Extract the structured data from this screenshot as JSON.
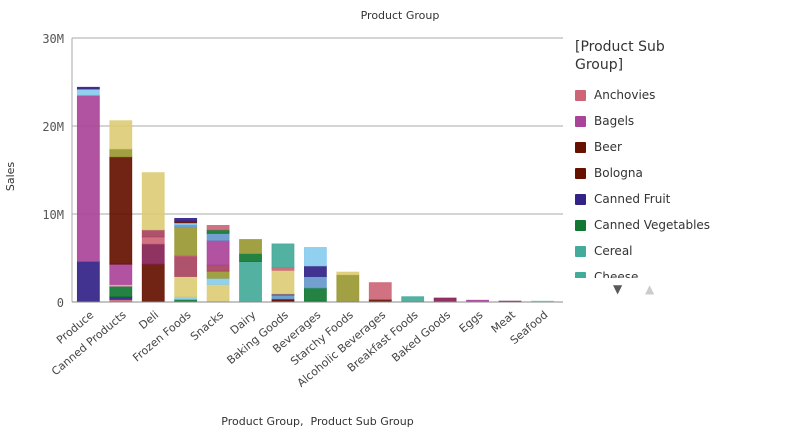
{
  "chart_data": {
    "type": "bar",
    "stacked": true,
    "title": "Product Group",
    "xlabel": "Product Group,  Product Sub Group",
    "ylabel": "Sales",
    "ylim": [
      0,
      30000000
    ],
    "yticks": [
      {
        "v": 0,
        "label": "0"
      },
      {
        "v": 10000000,
        "label": "10M"
      },
      {
        "v": 20000000,
        "label": "20M"
      },
      {
        "v": 30000000,
        "label": "30M"
      }
    ],
    "grid": true,
    "legend_position": "right",
    "legend_title": "[Product Sub Group]",
    "legend": [
      {
        "name": "Anchovies",
        "color": "#cc6677"
      },
      {
        "name": "Bagels",
        "color": "#aa4499"
      },
      {
        "name": "Beer",
        "color": "#661100"
      },
      {
        "name": "Bologna",
        "color": "#661100"
      },
      {
        "name": "Canned Fruit",
        "color": "#332288"
      },
      {
        "name": "Canned Vegetables",
        "color": "#117733"
      },
      {
        "name": "Cereal",
        "color": "#44aa99"
      },
      {
        "name": "Cheese",
        "color": "#44aa99"
      }
    ],
    "categories": [
      "Produce",
      "Canned Products",
      "Deli",
      "Frozen Foods",
      "Snacks",
      "Dairy",
      "Baking Goods",
      "Beverages",
      "Starchy Foods",
      "Alcoholic Beverages",
      "Breakfast Foods",
      "Baked Goods",
      "Eggs",
      "Meat",
      "Seafood"
    ],
    "stacks": [
      [
        {
          "c": "#332288",
          "v": 4.6
        },
        {
          "c": "#aa4499",
          "v": 18.9
        },
        {
          "c": "#88ccee",
          "v": 0.7
        },
        {
          "c": "#332288",
          "v": 0.2
        }
      ],
      [
        {
          "c": "#cc6677",
          "v": 0.3
        },
        {
          "c": "#332288",
          "v": 0.3
        },
        {
          "c": "#117733",
          "v": 1.2
        },
        {
          "c": "#e8a0b0",
          "v": 0.2
        },
        {
          "c": "#aa4499",
          "v": 2.3
        },
        {
          "c": "#661100",
          "v": 12.2
        },
        {
          "c": "#999933",
          "v": 0.9
        },
        {
          "c": "#ddcc77",
          "v": 3.2
        }
      ],
      [
        {
          "c": "#661100",
          "v": 4.3
        },
        {
          "c": "#882255",
          "v": 2.3
        },
        {
          "c": "#cc6677",
          "v": 0.8
        },
        {
          "c": "#a8435f",
          "v": 0.8
        },
        {
          "c": "#ddcc77",
          "v": 6.5
        }
      ],
      [
        {
          "c": "#117733",
          "v": 0.3
        },
        {
          "c": "#88ccee",
          "v": 0.3
        },
        {
          "c": "#ddcc77",
          "v": 2.3
        },
        {
          "c": "#a8435f",
          "v": 2.3
        },
        {
          "c": "#cc6677",
          "v": 0.1
        },
        {
          "c": "#999933",
          "v": 3.2
        },
        {
          "c": "#6699cc",
          "v": 0.3
        },
        {
          "c": "#88ccee",
          "v": 0.2
        },
        {
          "c": "#661100",
          "v": 0.2
        },
        {
          "c": "#332288",
          "v": 0.3
        }
      ],
      [
        {
          "c": "#ddcc77",
          "v": 2.0
        },
        {
          "c": "#88ccee",
          "v": 0.7
        },
        {
          "c": "#999933",
          "v": 0.8
        },
        {
          "c": "#a8435f",
          "v": 0.7
        },
        {
          "c": "#aa4499",
          "v": 2.8
        },
        {
          "c": "#6699cc",
          "v": 0.8
        },
        {
          "c": "#117733",
          "v": 0.4
        },
        {
          "c": "#cc6677",
          "v": 0.5
        }
      ],
      [
        {
          "c": "#44aa99",
          "v": 4.6
        },
        {
          "c": "#117733",
          "v": 0.9
        },
        {
          "c": "#999933",
          "v": 1.6
        }
      ],
      [
        {
          "c": "#332288",
          "v": 0.15
        },
        {
          "c": "#661100",
          "v": 0.2
        },
        {
          "c": "#6699cc",
          "v": 0.45
        },
        {
          "c": "#332288",
          "v": 0.1
        },
        {
          "c": "#ddcc77",
          "v": 2.7
        },
        {
          "c": "#cc6677",
          "v": 0.3
        },
        {
          "c": "#44aa99",
          "v": 2.7
        }
      ],
      [
        {
          "c": "#88ccee",
          "v": 0.1
        },
        {
          "c": "#117733",
          "v": 1.5
        },
        {
          "c": "#6699cc",
          "v": 1.3
        },
        {
          "c": "#332288",
          "v": 1.2
        },
        {
          "c": "#88ccee",
          "v": 2.1
        }
      ],
      [
        {
          "c": "#999933",
          "v": 3.1
        },
        {
          "c": "#ddcc77",
          "v": 0.3
        }
      ],
      [
        {
          "c": "#661100",
          "v": 0.3
        },
        {
          "c": "#cc6677",
          "v": 1.9
        }
      ],
      [
        {
          "c": "#44aa99",
          "v": 0.6
        }
      ],
      [
        {
          "c": "#882255",
          "v": 0.45
        }
      ],
      [
        {
          "c": "#aa4499",
          "v": 0.2
        }
      ],
      [
        {
          "c": "#882255",
          "v": 0.1
        }
      ],
      [
        {
          "c": "#88ddbb",
          "v": 0.1
        }
      ]
    ],
    "value_unit": "M"
  },
  "legend_nav": {
    "down": "▼",
    "up": "▲"
  }
}
